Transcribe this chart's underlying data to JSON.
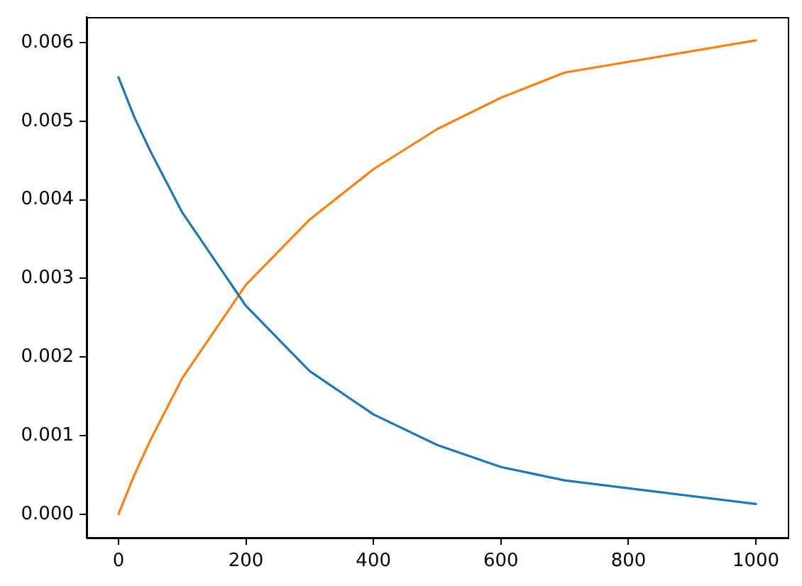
{
  "chart_data": {
    "type": "line",
    "x": [
      0,
      25,
      50,
      100,
      200,
      300,
      400,
      500,
      600,
      700,
      1000
    ],
    "series": [
      {
        "color": "#1f77b4",
        "values": [
          0.00556,
          0.00505,
          0.00462,
          0.00384,
          0.00265,
          0.00182,
          0.00127,
          0.00088,
          0.0006,
          0.00043,
          0.00013
        ]
      },
      {
        "color": "#ff7f0e",
        "values": [
          0,
          0.0005,
          0.00094,
          0.00173,
          0.00292,
          0.00375,
          0.00439,
          0.0049,
          0.0053,
          0.00562,
          0.00603
        ]
      }
    ],
    "xlim": [
      -50,
      1050
    ],
    "xticks": [
      0,
      200,
      400,
      600,
      800,
      1000
    ],
    "ylim": [
      -0.0003,
      0.00633
    ],
    "yticks": [
      {
        "value": 0,
        "label": "0.000"
      },
      {
        "value": 0.001,
        "label": "0.001"
      },
      {
        "value": 0.002,
        "label": "0.002"
      },
      {
        "value": 0.003,
        "label": "0.003"
      },
      {
        "value": 0.004,
        "label": "0.004"
      },
      {
        "value": 0.005,
        "label": "0.005"
      },
      {
        "value": 0.006,
        "label": "0.006"
      }
    ],
    "line_style": "solid",
    "grid": false,
    "legend": false
  }
}
